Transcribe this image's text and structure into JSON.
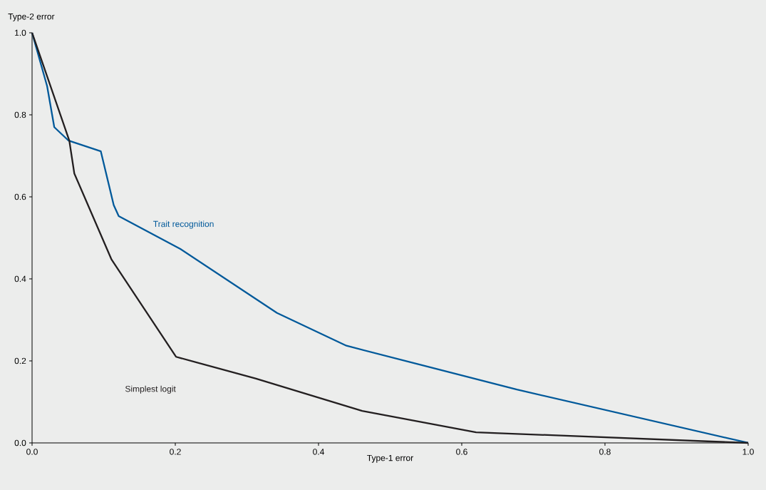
{
  "chart_data": {
    "type": "line",
    "xlabel": "Type-1 error",
    "ylabel": "Type-2 error",
    "xlim": [
      0,
      1
    ],
    "ylim": [
      0,
      1
    ],
    "xticks": [
      {
        "value": 0,
        "label": "0.0"
      },
      {
        "value": 0.2,
        "label": "0.2"
      },
      {
        "value": 0.4,
        "label": "0.4"
      },
      {
        "value": 0.6,
        "label": "0.6"
      },
      {
        "value": 0.8,
        "label": "0.8"
      },
      {
        "value": 1,
        "label": "1.0"
      }
    ],
    "yticks": [
      {
        "value": 0,
        "label": "0.0"
      },
      {
        "value": 0.2,
        "label": "0.2"
      },
      {
        "value": 0.4,
        "label": "0.4"
      },
      {
        "value": 0.6,
        "label": "0.6"
      },
      {
        "value": 0.8,
        "label": "0.8"
      },
      {
        "value": 1,
        "label": "1.0"
      }
    ],
    "grid": false,
    "legend": false,
    "marker": "none",
    "line_style": "solid",
    "series": [
      {
        "name": "Trait recognition",
        "color": "#00599a",
        "x": [
          0,
          0.021,
          0.031,
          0.051,
          0.096,
          0.114,
          0.121,
          0.207,
          0.342,
          0.439,
          0.677,
          1
        ],
        "values": [
          1,
          0.87,
          0.77,
          0.737,
          0.711,
          0.58,
          0.553,
          0.473,
          0.317,
          0.237,
          0.13,
          0
        ]
      },
      {
        "name": "Simplest logit",
        "color": "#231f20",
        "x": [
          0,
          0.052,
          0.059,
          0.111,
          0.201,
          0.312,
          0.461,
          0.62,
          1
        ],
        "values": [
          1,
          0.737,
          0.657,
          0.447,
          0.21,
          0.157,
          0.078,
          0.026,
          0
        ]
      }
    ]
  }
}
